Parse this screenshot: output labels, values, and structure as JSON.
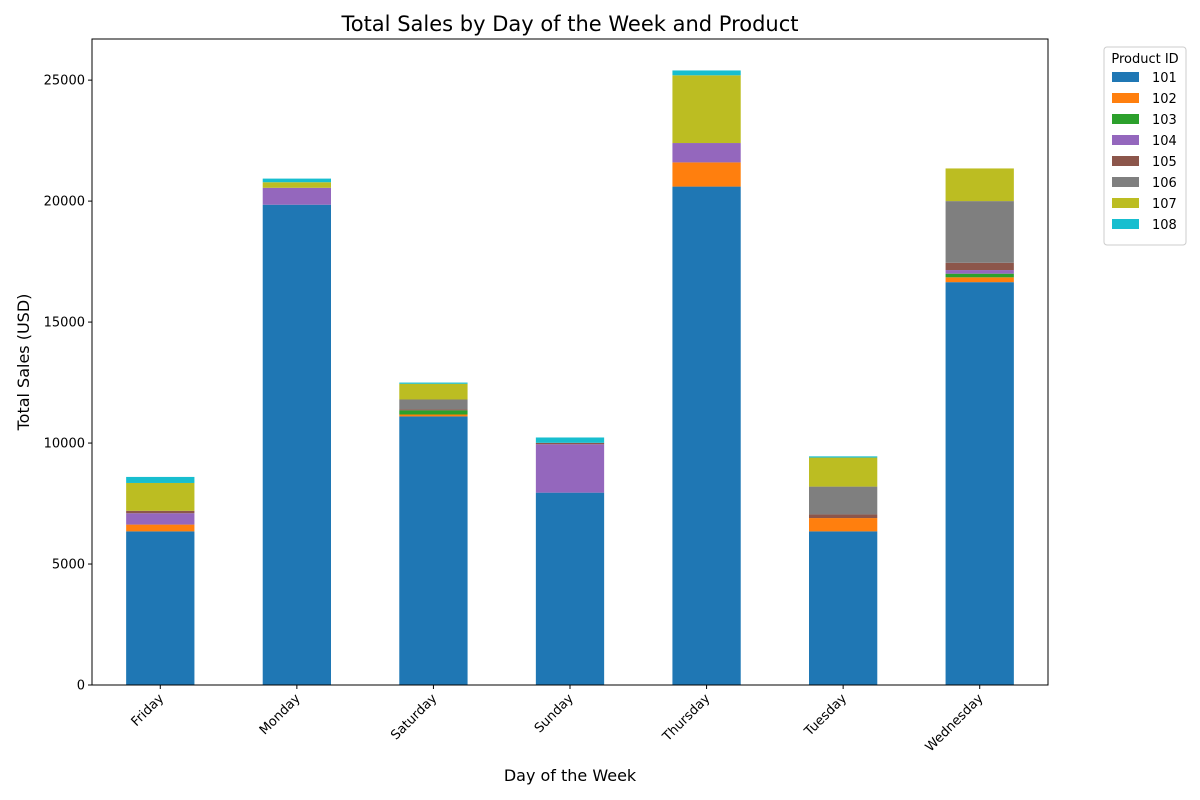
{
  "chart_data": {
    "type": "bar",
    "stacked": true,
    "title": "Total Sales by Day of the Week and Product",
    "xlabel": "Day of the Week",
    "ylabel": "Total Sales (USD)",
    "ylim": [
      0,
      26700
    ],
    "yticks": [
      0,
      5000,
      10000,
      15000,
      20000,
      25000
    ],
    "grid": false,
    "legend": {
      "title": "Product ID",
      "placement": "outside-top-right"
    },
    "categories": [
      "Friday",
      "Monday",
      "Saturday",
      "Sunday",
      "Thursday",
      "Tuesday",
      "Wednesday"
    ],
    "series": [
      {
        "name": "101",
        "color": "#1f77b4",
        "values": [
          6350,
          19850,
          11100,
          7950,
          20600,
          6350,
          16650
        ]
      },
      {
        "name": "102",
        "color": "#ff7f0e",
        "values": [
          280,
          0,
          80,
          0,
          1000,
          550,
          200
        ]
      },
      {
        "name": "103",
        "color": "#2ca02c",
        "values": [
          0,
          0,
          170,
          0,
          0,
          0,
          150
        ]
      },
      {
        "name": "104",
        "color": "#9467bd",
        "values": [
          470,
          700,
          0,
          2000,
          800,
          0,
          150
        ]
      },
      {
        "name": "105",
        "color": "#8c564b",
        "values": [
          100,
          0,
          40,
          60,
          0,
          150,
          300
        ]
      },
      {
        "name": "106",
        "color": "#7f7f7f",
        "values": [
          0,
          0,
          410,
          0,
          0,
          1150,
          2550
        ]
      },
      {
        "name": "107",
        "color": "#bcbd22",
        "values": [
          1150,
          230,
          650,
          0,
          2800,
          1200,
          1350
        ]
      },
      {
        "name": "108",
        "color": "#17becf",
        "values": [
          250,
          150,
          50,
          220,
          200,
          50,
          0
        ]
      }
    ]
  }
}
